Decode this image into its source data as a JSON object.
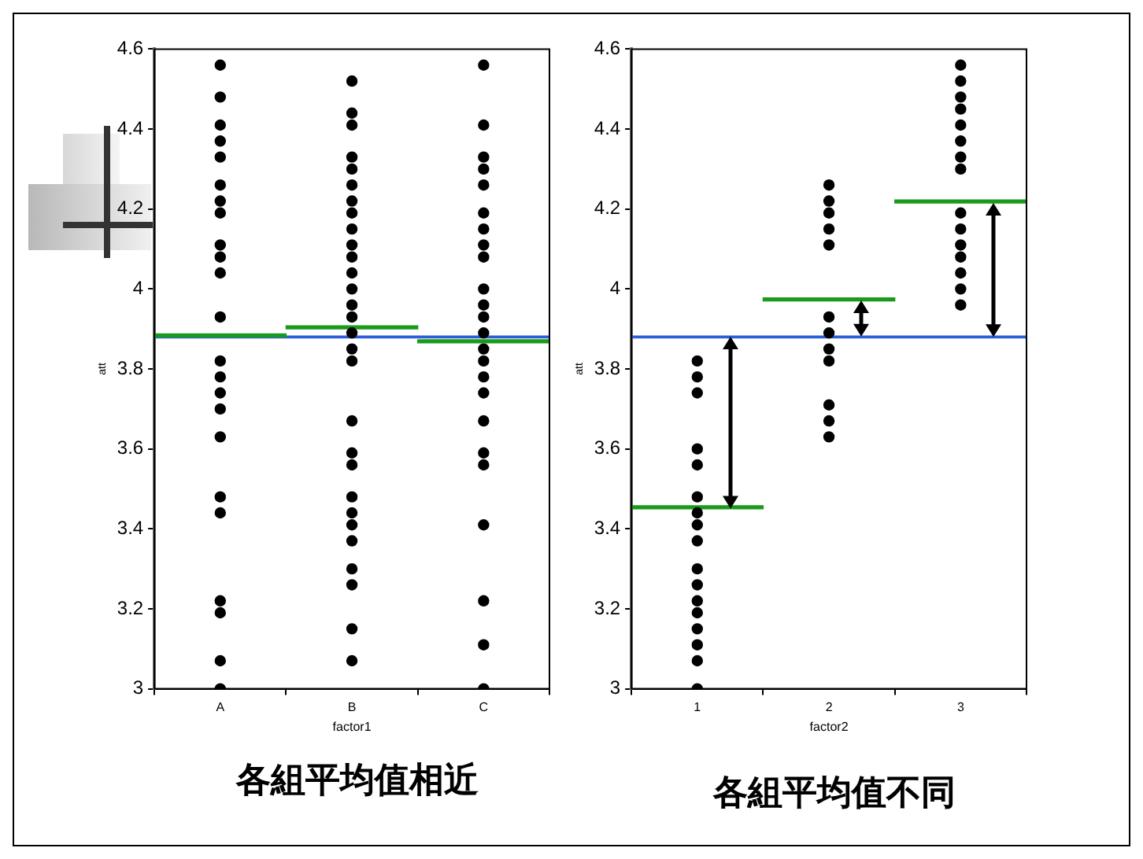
{
  "chart_data": [
    {
      "type": "scatter",
      "xlabel": "factor1",
      "ylabel": "att",
      "categories": [
        "A",
        "B",
        "C"
      ],
      "ylim": [
        3,
        4.6
      ],
      "yticks": [
        3,
        3.2,
        3.4,
        3.6,
        3.8,
        4,
        4.2,
        4.4,
        4.6
      ],
      "grid": false,
      "legend": false,
      "annotations": [
        "各組平均值相近"
      ],
      "ref_lines": [
        {
          "axis": "y",
          "value": 3.88,
          "color": "#2b5fd9"
        }
      ],
      "series": [
        {
          "type": "scatter",
          "marker": "circle",
          "color": "#000000",
          "x": [
            "A",
            "A",
            "A",
            "A",
            "A",
            "A",
            "A",
            "A",
            "A",
            "A",
            "A",
            "A",
            "A",
            "A",
            "A",
            "A",
            "A",
            "A",
            "A",
            "A",
            "A",
            "A",
            "A"
          ],
          "values": [
            4.56,
            4.48,
            4.41,
            4.37,
            4.33,
            4.26,
            4.22,
            4.19,
            4.11,
            4.08,
            4.04,
            3.93,
            3.82,
            3.78,
            3.74,
            3.7,
            3.63,
            3.48,
            3.44,
            3.22,
            3.19,
            3.07,
            3.0
          ]
        },
        {
          "type": "scatter",
          "marker": "circle",
          "color": "#000000",
          "x": [
            "B",
            "B",
            "B",
            "B",
            "B",
            "B",
            "B",
            "B",
            "B",
            "B",
            "B",
            "B",
            "B",
            "B",
            "B",
            "B",
            "B",
            "B",
            "B",
            "B",
            "B",
            "B",
            "B",
            "B",
            "B",
            "B",
            "B",
            "B",
            "B"
          ],
          "values": [
            4.52,
            4.44,
            4.41,
            4.33,
            4.3,
            4.26,
            4.22,
            4.19,
            4.15,
            4.11,
            4.08,
            4.04,
            4.0,
            3.96,
            3.93,
            3.89,
            3.85,
            3.82,
            3.67,
            3.59,
            3.56,
            3.48,
            3.44,
            3.41,
            3.37,
            3.3,
            3.26,
            3.15,
            3.07
          ]
        },
        {
          "type": "scatter",
          "marker": "circle",
          "color": "#000000",
          "x": [
            "C",
            "C",
            "C",
            "C",
            "C",
            "C",
            "C",
            "C",
            "C",
            "C",
            "C",
            "C",
            "C",
            "C",
            "C",
            "C",
            "C",
            "C",
            "C",
            "C",
            "C",
            "C",
            "C",
            "C"
          ],
          "values": [
            4.56,
            4.41,
            4.33,
            4.3,
            4.26,
            4.19,
            4.15,
            4.11,
            4.08,
            4.0,
            3.96,
            3.93,
            3.89,
            3.85,
            3.82,
            3.78,
            3.74,
            3.67,
            3.59,
            3.56,
            3.41,
            3.22,
            3.11,
            3.0
          ]
        },
        {
          "type": "bar",
          "color": "#1a9a1a",
          "base": [
            3.88,
            3.9,
            3.865
          ],
          "values": [
            0,
            0,
            0
          ]
        }
      ]
    },
    {
      "type": "scatter",
      "xlabel": "factor2",
      "ylabel": "att",
      "categories": [
        "1",
        "2",
        "3"
      ],
      "ylim": [
        3,
        4.6
      ],
      "yticks": [
        3,
        3.2,
        3.4,
        3.6,
        3.8,
        4,
        4.2,
        4.4,
        4.6
      ],
      "grid": false,
      "legend": false,
      "annotations": [
        "各組平均值不同"
      ],
      "ref_lines": [
        {
          "axis": "y",
          "value": 3.88,
          "color": "#2b5fd9"
        }
      ],
      "series": [
        {
          "type": "scatter",
          "marker": "circle",
          "color": "#000000",
          "x": [
            "1",
            "1",
            "1",
            "1",
            "1",
            "1",
            "1",
            "1",
            "1",
            "1",
            "1",
            "1",
            "1",
            "1",
            "1",
            "1",
            "1"
          ],
          "values": [
            3.82,
            3.78,
            3.74,
            3.6,
            3.56,
            3.48,
            3.44,
            3.41,
            3.37,
            3.3,
            3.26,
            3.22,
            3.19,
            3.15,
            3.11,
            3.07,
            3.0
          ]
        },
        {
          "type": "scatter",
          "marker": "circle",
          "color": "#000000",
          "x": [
            "2",
            "2",
            "2",
            "2",
            "2",
            "2",
            "2",
            "2",
            "2",
            "2",
            "2",
            "2"
          ],
          "values": [
            4.26,
            4.22,
            4.19,
            4.15,
            4.11,
            3.93,
            3.89,
            3.85,
            3.82,
            3.71,
            3.67,
            3.63
          ]
        },
        {
          "type": "scatter",
          "marker": "circle",
          "color": "#000000",
          "x": [
            "3",
            "3",
            "3",
            "3",
            "3",
            "3",
            "3",
            "3",
            "3",
            "3",
            "3",
            "3",
            "3",
            "3",
            "3"
          ],
          "values": [
            4.56,
            4.52,
            4.48,
            4.45,
            4.41,
            4.37,
            4.33,
            4.3,
            4.19,
            4.15,
            4.11,
            4.08,
            4.04,
            4.0,
            3.96
          ]
        },
        {
          "type": "bar",
          "color": "#1a9a1a",
          "base": [
            3.45,
            3.97,
            4.215
          ],
          "values": [
            0,
            0,
            0
          ]
        }
      ]
    }
  ]
}
